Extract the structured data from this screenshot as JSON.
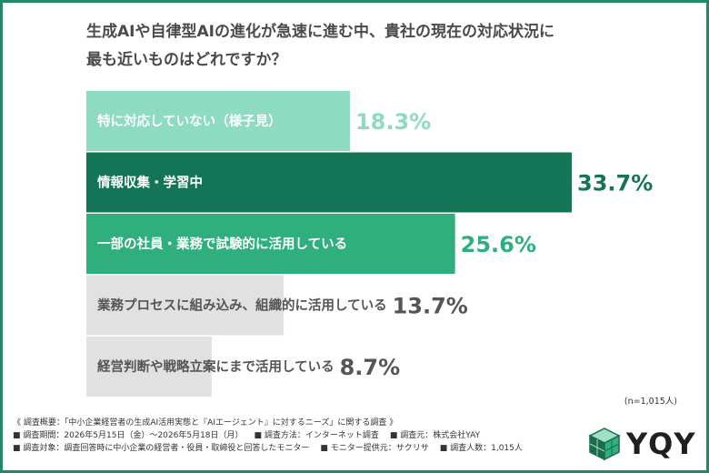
{
  "question": {
    "line1": "生成AIや自律型AIの進化が急速に進む中、貴社の現在の対応状況に",
    "line2": "最も近いものはどれですか？"
  },
  "chart_data": {
    "type": "bar",
    "orientation": "horizontal",
    "title": "生成AIや自律型AIの進化が急速に進む中、貴社の現在の対応状況に最も近いものはどれですか？",
    "categories": [
      "特に対応していない（様子見）",
      "情報収集・学習中",
      "一部の社員・業務で試験的に活用している",
      "業務プロセスに組み込み、組織的に活用している",
      "経営判断や戦略立案にまで活用している"
    ],
    "values": [
      18.3,
      33.7,
      25.6,
      13.7,
      8.7
    ],
    "value_labels": [
      "18.3%",
      "33.7%",
      "25.6%",
      "13.7%",
      "8.7%"
    ],
    "unit": "%",
    "xlim": [
      0,
      33.7
    ],
    "grid": false,
    "legend": "none",
    "colors": {
      "bars": [
        "#8ddbc0",
        "#137556",
        "#2fae7e",
        "#e1e1e1",
        "#e1e1e1"
      ],
      "bar_text": [
        "#ffffff",
        "#ffffff",
        "#ffffff",
        "#555555",
        "#555555"
      ],
      "value_text": [
        "#8ddbc0",
        "#137556",
        "#2fae7e",
        "#555555",
        "#555555"
      ]
    }
  },
  "sample_note": "(n=1,015人)",
  "footer": {
    "overview": "《 調査概要：「中小企業経営者の生成AI活用実態と『AIエージェント』に対するニーズ」に関する調査 》",
    "period": "■ 調査期間：2026年5月15日（金）〜2026年5月18日（月）",
    "method": "■ 調査方法：インターネット調査",
    "source": "■ 調査元：株式会社YAY",
    "target": "■ 調査対象：調査回答時に中小企業の経営者・役員・取締役と回答したモニター",
    "provider": "■ モニター提供元：サクリサ",
    "count": "■ 調査人数：1,015人"
  },
  "logo": {
    "text": "YQY",
    "icon": "cube-logo-icon",
    "colors": {
      "cube_dark": "#1c6b4b",
      "cube_light": "#2fae7e",
      "cube_top": "#9fe0c6"
    }
  }
}
